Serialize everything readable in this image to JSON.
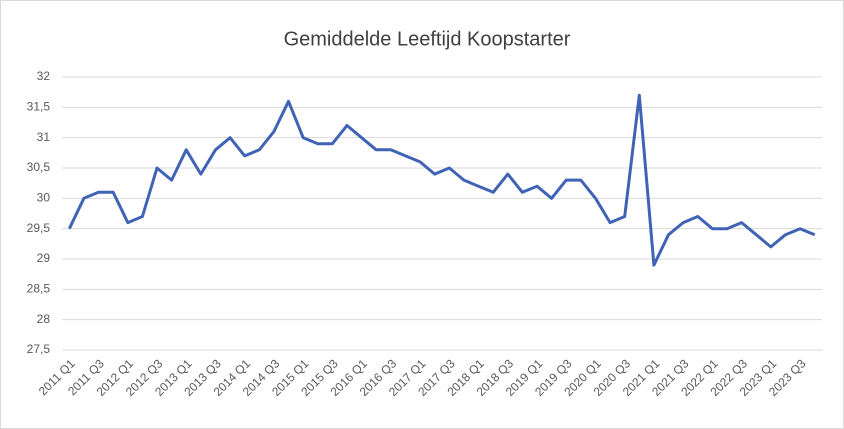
{
  "chart_data": {
    "type": "line",
    "title": "Gemiddelde Leeftijd Koopstarter",
    "categories": [
      "2011 Q1",
      null,
      "2011 Q3",
      null,
      "2012 Q1",
      null,
      "2012 Q3",
      null,
      "2013 Q1",
      null,
      "2013 Q3",
      null,
      "2014 Q1",
      null,
      "2014 Q3",
      null,
      "2015 Q1",
      null,
      "2015 Q3",
      null,
      "2016 Q1",
      null,
      "2016 Q3",
      null,
      "2017 Q1",
      null,
      "2017 Q3",
      null,
      "2018 Q1",
      null,
      "2018 Q3",
      null,
      "2019 Q1",
      null,
      "2019 Q3",
      null,
      "2020 Q1",
      null,
      "2020 Q3",
      null,
      "2021 Q1",
      null,
      "2021 Q3",
      null,
      "2022 Q1",
      null,
      "2022 Q3",
      null,
      "2023 Q1",
      null,
      "2023 Q3",
      null
    ],
    "values": [
      29.5,
      30.0,
      30.1,
      30.1,
      29.6,
      29.7,
      30.5,
      30.3,
      30.8,
      30.4,
      30.8,
      31.0,
      30.7,
      30.8,
      31.1,
      31.6,
      31.0,
      30.9,
      30.9,
      31.2,
      31.0,
      30.8,
      30.8,
      30.7,
      30.6,
      30.4,
      30.5,
      30.3,
      30.2,
      30.1,
      30.4,
      30.1,
      30.2,
      30.0,
      30.3,
      30.3,
      30.0,
      29.6,
      29.7,
      31.7,
      28.9,
      29.4,
      29.6,
      29.7,
      29.5,
      29.5,
      29.6,
      29.4,
      29.2,
      29.4,
      29.5,
      29.4
    ],
    "color": "#4063b6",
    "ylim": [
      27.5,
      32
    ],
    "yticks": [
      {
        "value": 27.5,
        "label": "27,5"
      },
      28,
      {
        "value": 28.5,
        "label": "28,5"
      },
      29,
      {
        "value": 29.5,
        "label": "29,5"
      },
      30,
      {
        "value": 30.5,
        "label": "30,5"
      },
      31,
      {
        "value": 31.5,
        "label": "31,5"
      },
      32
    ],
    "grid": true
  }
}
